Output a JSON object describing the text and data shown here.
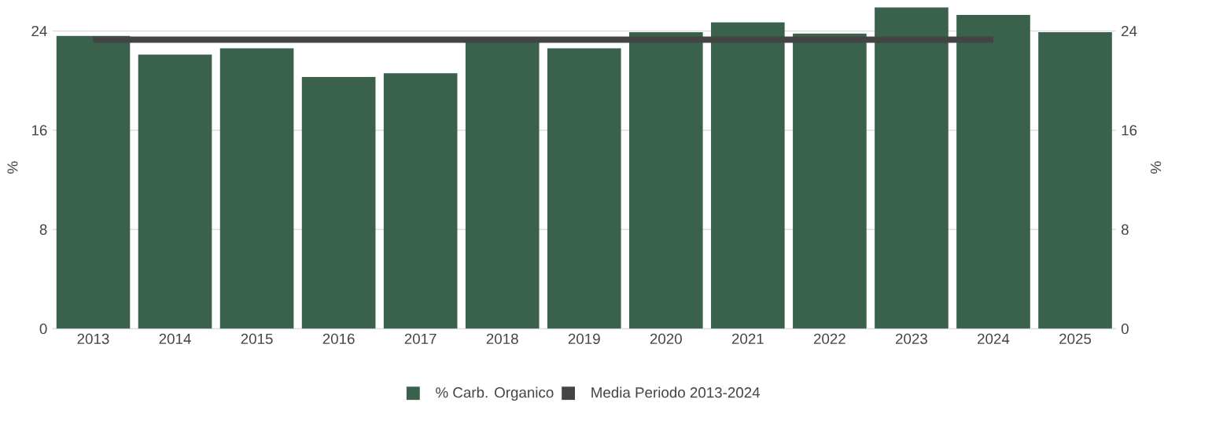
{
  "chart_data": {
    "type": "bar",
    "categories": [
      "2013",
      "2014",
      "2015",
      "2016",
      "2017",
      "2018",
      "2019",
      "2020",
      "2021",
      "2022",
      "2023",
      "2024",
      "2025"
    ],
    "series": [
      {
        "name": "% Carb. Organico",
        "color": "#3a614c",
        "values": [
          23.6,
          22.1,
          22.6,
          20.3,
          20.6,
          23.2,
          22.6,
          23.9,
          24.7,
          23.8,
          25.9,
          25.3,
          23.9
        ]
      },
      {
        "name": "Media Periodo 2013-2024",
        "type": "line",
        "color": "#444444",
        "values": [
          23.3,
          23.3,
          23.3,
          23.3,
          23.3,
          23.3,
          23.3,
          23.3,
          23.3,
          23.3,
          23.3,
          23.3,
          null
        ]
      }
    ],
    "ylabel": "%",
    "y2label": "%",
    "ylim": [
      0,
      26
    ],
    "yticks": [
      0,
      8,
      16,
      24
    ],
    "y2lim": [
      0,
      26
    ],
    "y2ticks": [
      0,
      8,
      16,
      24
    ],
    "grid": "y",
    "legend": "bottom"
  }
}
